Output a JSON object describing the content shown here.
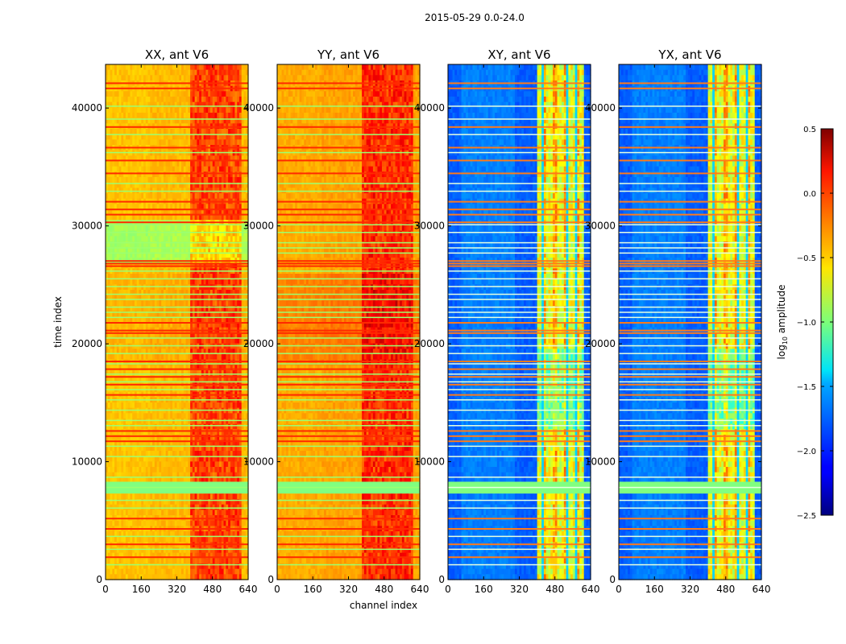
{
  "figure": {
    "suptitle": "2015-05-29 0.0-24.0",
    "xlabel": "channel index",
    "ylabel": "time index"
  },
  "chart_data": {
    "type": "heatmap",
    "x_ticks": [
      0,
      160,
      320,
      480,
      640
    ],
    "y_ticks": [
      0,
      10000,
      20000,
      30000,
      40000
    ],
    "xlim": [
      0,
      640
    ],
    "ylim": [
      0,
      43700
    ],
    "panels": [
      {
        "title": "XX, ant V6",
        "baseline": -0.45
      },
      {
        "title": "YY, ant V6",
        "baseline": -0.38
      },
      {
        "title": "XY, ant V6",
        "baseline": -1.85
      },
      {
        "title": "YX, ant V6",
        "baseline": -1.85
      }
    ],
    "colorbar": {
      "label_main": "log",
      "label_sub": "10",
      "label_tail": " amplitude",
      "ticks": [
        "0.5",
        "0.0",
        "−0.5",
        "−1.0",
        "−1.5",
        "−2.0",
        "−2.5"
      ],
      "range": [
        -2.5,
        0.5
      ],
      "colormap": "jet"
    },
    "grid": false
  }
}
